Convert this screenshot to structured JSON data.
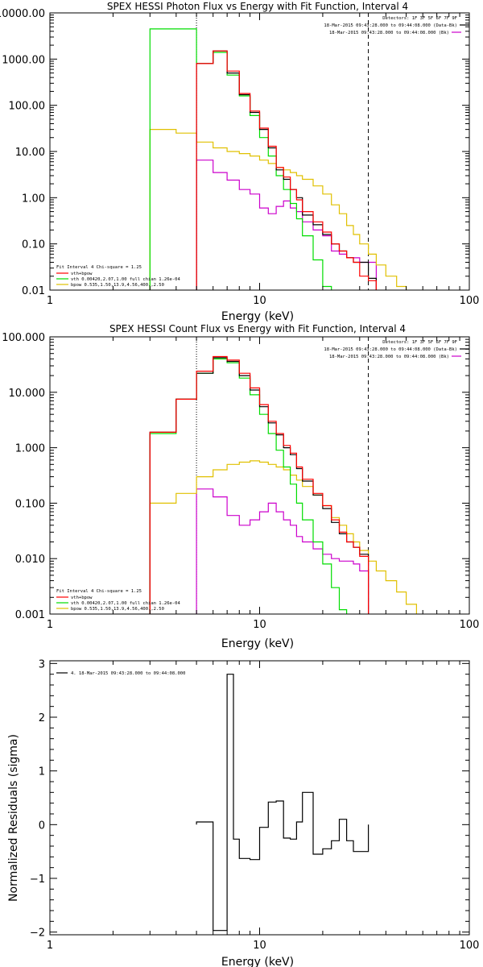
{
  "colors": {
    "total": "#000000",
    "sum_fit": "#ff0000",
    "vth_fit": "#00dd00",
    "bpow_fit": "#e0c000",
    "background": "#cc00cc"
  },
  "chart_data": [
    {
      "type": "line",
      "title": "SPEX HESSI Photon Flux vs Energy with Fit Function, Interval 4",
      "xlabel": "Energy (keV)",
      "ylabel": "",
      "x_scale": "log",
      "y_scale": "log",
      "xlim": [
        1,
        100
      ],
      "ylim": [
        0.01,
        10000
      ],
      "x_ticks": [
        "1",
        "10",
        "100"
      ],
      "y_ticks": [
        "0.01",
        "0.10",
        "1.00",
        "10.00",
        "100.00",
        "1000.00",
        "10000.00"
      ],
      "vlines": {
        "dotted": 5,
        "dashed": 33
      },
      "bin_edges": [
        3,
        4,
        5,
        6,
        7,
        8,
        9,
        10,
        11,
        12,
        13,
        14,
        15,
        16,
        18,
        20,
        22,
        24,
        26,
        28,
        30,
        33,
        36,
        40,
        45,
        50
      ],
      "series": [
        {
          "name": "",
          "color_key": "total",
          "values": [
            null,
            null,
            800,
            1500,
            500,
            170,
            70,
            30,
            12,
            4,
            2.5,
            1.5,
            1.0,
            0.42,
            0.26,
            0.16,
            0.1,
            0.07,
            0.05,
            0.04,
            0.04,
            0.018,
            null,
            null,
            null
          ]
        },
        {
          "name": "vth+bpow",
          "color_key": "sum_fit",
          "values": [
            null,
            null,
            800,
            1500,
            550,
            180,
            75,
            32,
            13,
            4.5,
            2.8,
            1.5,
            0.9,
            0.5,
            0.3,
            0.18,
            0.1,
            0.07,
            0.05,
            0.04,
            0.02,
            0.016,
            null,
            null,
            null
          ]
        },
        {
          "name": "vth 0.00420,2.07,1.00 full chian 1.26e-04",
          "color_key": "vth_fit",
          "values": [
            4500,
            4500,
            800,
            1400,
            450,
            160,
            60,
            20,
            8,
            3,
            1.5,
            0.75,
            0.35,
            0.15,
            0.045,
            0.012,
            null,
            null,
            null,
            null,
            null,
            null,
            null,
            null,
            null
          ]
        },
        {
          "name": "bpow 0.535,1.50,13.9,4.56,400.,2.50",
          "color_key": "bpow_fit",
          "values": [
            30,
            25,
            16,
            12,
            10,
            9,
            8,
            6.5,
            5.5,
            4.5,
            4,
            3.5,
            3,
            2.5,
            1.8,
            1.2,
            0.7,
            0.45,
            0.25,
            0.16,
            0.1,
            0.06,
            0.035,
            0.02,
            0.012
          ]
        },
        {
          "name": "",
          "color_key": "background",
          "values": [
            null,
            null,
            6.5,
            3.5,
            2.4,
            1.5,
            1.2,
            0.6,
            0.45,
            0.65,
            0.85,
            0.6,
            0.5,
            0.3,
            0.2,
            0.15,
            0.07,
            0.06,
            0.05,
            0.05,
            0.04,
            0.04,
            null,
            null,
            null
          ]
        }
      ],
      "legend_topright": {
        "detectors": "Detectors: 1F 3F 5F 6F 7F 9F",
        "entries": [
          {
            "text": "18-Mar-2015 09:43:28.000 to 09:44:08.000 (Data-Bk)",
            "color_key": "total"
          },
          {
            "text": "18-Mar-2015 09:43:28.000 to 09:44:08.000 (Bk)",
            "color_key": "background"
          }
        ]
      },
      "legend_bottomleft": {
        "header": "Fit Interval  4    Chi-square = 1.25",
        "entries": [
          {
            "text": "vth+bpow",
            "color_key": "sum_fit"
          },
          {
            "text": "vth 0.00420,2.07,1.00  full chian 1.26e-04",
            "color_key": "vth_fit"
          },
          {
            "text": "bpow 0.535,1.50,13.9,4.56,400.,2.50",
            "color_key": "bpow_fit"
          }
        ]
      }
    },
    {
      "type": "line",
      "title": "SPEX HESSI Count Flux vs Energy with Fit Function, Interval 4",
      "xlabel": "Energy (keV)",
      "ylabel": "",
      "x_scale": "log",
      "y_scale": "log",
      "xlim": [
        1,
        100
      ],
      "ylim": [
        0.001,
        100
      ],
      "x_ticks": [
        "1",
        "10",
        "100"
      ],
      "y_ticks": [
        "0.001",
        "0.010",
        "0.100",
        "1.000",
        "10.000",
        "100.000"
      ],
      "vlines": {
        "dotted": 5,
        "dashed": 33
      },
      "bin_edges": [
        3,
        4,
        5,
        6,
        7,
        8,
        9,
        10,
        11,
        12,
        13,
        14,
        15,
        16,
        18,
        20,
        22,
        24,
        26,
        28,
        30,
        33,
        36,
        40,
        45,
        50,
        56
      ],
      "series": [
        {
          "name": "",
          "color_key": "total",
          "values": [
            1.9,
            7.5,
            22,
            42,
            36,
            20,
            11,
            5.5,
            2.8,
            1.7,
            1.0,
            0.75,
            0.42,
            0.25,
            0.14,
            0.08,
            0.045,
            0.028,
            0.02,
            0.016,
            0.012,
            null,
            null,
            null,
            null,
            null
          ]
        },
        {
          "name": "vth+bpow",
          "color_key": "sum_fit",
          "values": [
            1.9,
            7.5,
            24,
            44,
            38,
            22,
            12,
            6,
            3,
            1.8,
            1.1,
            0.8,
            0.45,
            0.27,
            0.15,
            0.09,
            0.05,
            0.03,
            0.02,
            0.016,
            0.011,
            null,
            null,
            null,
            null,
            null
          ]
        },
        {
          "name": "vth 0.00420,2.07,1.00 full chian 1.26e-04",
          "color_key": "vth_fit",
          "values": [
            1.8,
            7.5,
            22,
            40,
            34,
            18,
            9,
            4,
            1.8,
            0.9,
            0.45,
            0.22,
            0.1,
            0.05,
            0.02,
            0.008,
            0.003,
            0.0012,
            null,
            null,
            null,
            null,
            null,
            null,
            null,
            null
          ]
        },
        {
          "name": "bpow 0.535,1.50,13.9,4.56,400.,2.50",
          "color_key": "bpow_fit",
          "values": [
            0.1,
            0.15,
            0.3,
            0.4,
            0.5,
            0.55,
            0.58,
            0.55,
            0.5,
            0.45,
            0.4,
            0.32,
            0.26,
            0.2,
            0.14,
            0.09,
            0.055,
            0.04,
            0.028,
            0.02,
            0.014,
            0.009,
            0.006,
            0.004,
            0.0025,
            0.0015
          ]
        },
        {
          "name": "",
          "color_key": "background",
          "values": [
            null,
            null,
            0.18,
            0.13,
            0.06,
            0.04,
            0.05,
            0.07,
            0.1,
            0.07,
            0.05,
            0.04,
            0.025,
            0.02,
            0.015,
            0.012,
            0.01,
            0.009,
            0.009,
            0.008,
            0.006,
            null,
            null,
            null,
            null,
            null
          ]
        }
      ],
      "legend_topright": {
        "detectors": "Detectors: 1F 3F 5F 6F 7F 9F",
        "entries": [
          {
            "text": "18-Mar-2015 09:43:28.000 to 09:44:08.000 (Data-Bk)",
            "color_key": "total"
          },
          {
            "text": "18-Mar-2015 09:43:28.000 to 09:44:08.000 (Bk)",
            "color_key": "background"
          }
        ]
      },
      "legend_bottomleft": {
        "header": "Fit Interval  4    Chi-square = 1.25",
        "entries": [
          {
            "text": "vth+bpow",
            "color_key": "sum_fit"
          },
          {
            "text": "vth 0.00420,2.07,1.00  full chian 1.26e-04",
            "color_key": "vth_fit"
          },
          {
            "text": "bpow 0.535,1.50,13.9,4.56,400.,2.50",
            "color_key": "bpow_fit"
          }
        ]
      }
    },
    {
      "type": "line",
      "title": "",
      "xlabel": "Energy (keV)",
      "ylabel": "Normalized Residuals (sigma)",
      "x_scale": "log",
      "y_scale": "linear",
      "xlim": [
        1,
        100
      ],
      "ylim": [
        -2.05,
        3.05
      ],
      "x_ticks": [
        "1",
        "10",
        "100"
      ],
      "y_ticks": [
        "−2",
        "−1",
        "0",
        "1",
        "2",
        "3"
      ],
      "bin_edges": [
        5,
        6,
        7,
        7.5,
        8,
        9,
        10,
        11,
        12,
        13,
        14,
        15,
        16,
        18,
        20,
        22,
        24,
        26,
        28,
        30,
        33
      ],
      "series": [
        {
          "name": "",
          "color_key": "total",
          "values": [
            0.05,
            -1.97,
            2.8,
            -0.27,
            -0.63,
            -0.65,
            -0.05,
            0.42,
            0.44,
            -0.25,
            -0.27,
            0.05,
            0.6,
            -0.55,
            -0.45,
            -0.3,
            0.1,
            -0.3,
            -0.5,
            -0.5
          ]
        }
      ],
      "legend_topleft": {
        "entries": [
          {
            "text": "4. 18-Mar-2015 09:43:28.000 to 09:44:08.000",
            "color_key": "total"
          }
        ]
      }
    }
  ]
}
